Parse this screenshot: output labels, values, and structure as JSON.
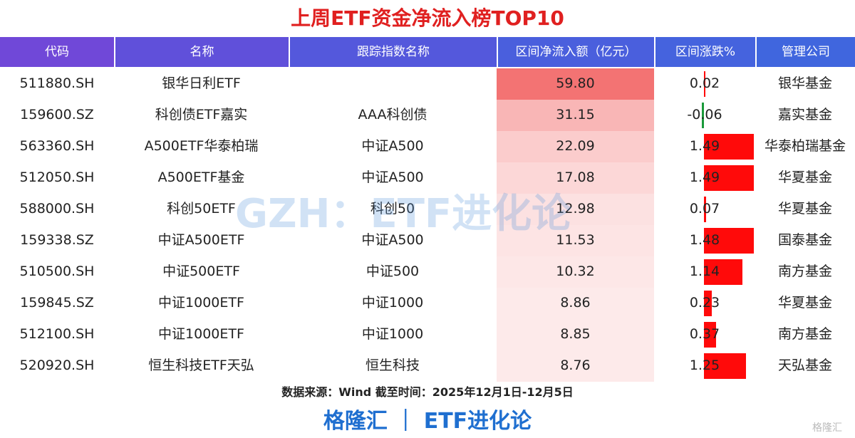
{
  "title": "上周ETF资金净流入榜TOP10",
  "table": {
    "header": [
      "代码",
      "名称",
      "跟踪指数名称",
      "区间净流入额（亿元）",
      "区间涨跌%",
      "管理公司"
    ],
    "rows": [
      [
        "511880.SH",
        "银华日利ETF",
        "",
        "59.80",
        "0.02",
        "银华基金"
      ],
      [
        "159600.SZ",
        "科创债ETF嘉实",
        "AAA科创债",
        "31.15",
        "-0.06",
        "嘉实基金"
      ],
      [
        "563360.SH",
        "A500ETF华泰柏瑞",
        "中证A500",
        "22.09",
        "1.49",
        "华泰柏瑞基金"
      ],
      [
        "512050.SH",
        "A500ETF基金",
        "中证A500",
        "17.08",
        "1.49",
        "华夏基金"
      ],
      [
        "588000.SH",
        "科创50ETF",
        "科创50",
        "12.98",
        "0.07",
        "华夏基金"
      ],
      [
        "159338.SZ",
        "中证A500ETF",
        "中证A500",
        "11.53",
        "1.48",
        "国泰基金"
      ],
      [
        "510500.SH",
        "中证500ETF",
        "中证500",
        "10.32",
        "1.14",
        "南方基金"
      ],
      [
        "159845.SZ",
        "中证1000ETF",
        "中证1000",
        "8.86",
        "0.23",
        "华夏基金"
      ],
      [
        "512100.SH",
        "中证1000ETF",
        "中证1000",
        "8.85",
        "0.37",
        "南方基金"
      ],
      [
        "520920.SH",
        "恒生科技ETF天弘",
        "恒生科技",
        "8.76",
        "1.25",
        "天弘基金"
      ]
    ]
  },
  "watermark": "GZH：ETF进化论",
  "source": "数据来源：Wind 截至时间：2025年12月1日-12月5日",
  "brand": "格隆汇 ｜ ETF进化论",
  "corner": "格隆汇"
}
